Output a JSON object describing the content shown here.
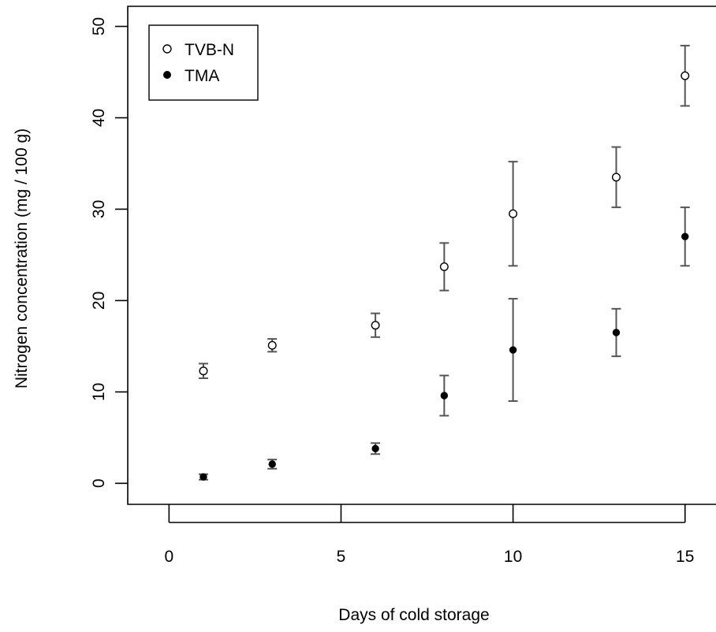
{
  "chart_data": {
    "type": "scatter",
    "xlabel": "Days of cold storage",
    "ylabel": "Nitrogen concentration (mg / 100 g)",
    "xlim": [
      -1.2,
      15.9
    ],
    "ylim": [
      -2.3,
      52.2
    ],
    "x_ticks": [
      0,
      5,
      10,
      15
    ],
    "y_ticks": [
      0,
      10,
      20,
      30,
      40,
      50
    ],
    "grid": false,
    "legend_position": "top-left",
    "series": [
      {
        "name": "TVB-N",
        "marker": "open-circle",
        "color": "#000000",
        "errorbar_color": "#555555",
        "points": [
          {
            "x": 1,
            "y": 12.3,
            "err": 0.8
          },
          {
            "x": 3,
            "y": 15.1,
            "err": 0.7
          },
          {
            "x": 6,
            "y": 17.3,
            "err": 1.3
          },
          {
            "x": 8,
            "y": 23.7,
            "err": 2.6
          },
          {
            "x": 10,
            "y": 29.5,
            "err": 5.7
          },
          {
            "x": 13,
            "y": 33.5,
            "err": 3.3
          },
          {
            "x": 15,
            "y": 44.6,
            "err": 3.3
          }
        ]
      },
      {
        "name": "TMA",
        "marker": "filled-circle",
        "color": "#000000",
        "errorbar_color": "#555555",
        "points": [
          {
            "x": 1,
            "y": 0.7,
            "err": 0.3
          },
          {
            "x": 3,
            "y": 2.1,
            "err": 0.5
          },
          {
            "x": 6,
            "y": 3.8,
            "err": 0.6
          },
          {
            "x": 8,
            "y": 9.6,
            "err": 2.2
          },
          {
            "x": 10,
            "y": 14.6,
            "err": 5.6
          },
          {
            "x": 13,
            "y": 16.5,
            "err": 2.6
          },
          {
            "x": 15,
            "y": 27.0,
            "err": 3.2
          }
        ]
      }
    ]
  }
}
